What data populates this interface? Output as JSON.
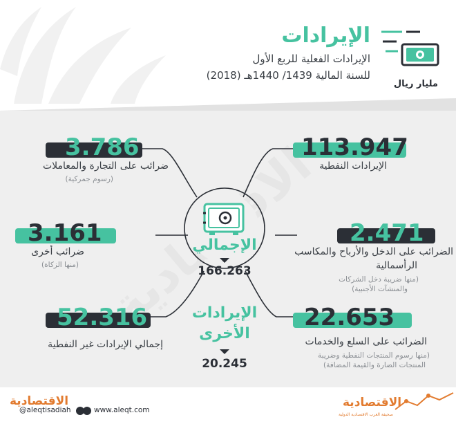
{
  "header": {
    "title": "الإيرادات",
    "subtitle_line1": "الإيرادات الفعلية للربع الأول",
    "subtitle_line2": "للسنة المالية 1439/ 1440هـ (2018)",
    "unit_label": "مليار ريال"
  },
  "items": {
    "oil_revenue": {
      "value": "113.947",
      "label": "الإيرادات النفطية"
    },
    "trade_tax": {
      "value": "3.786",
      "label": "ضرائب على التجارة والمعاملات",
      "note": "(رسوم جمركية)"
    },
    "income_tax": {
      "value": "2.471",
      "label_line1": "الضرائب على الدخل والأرباح والمكاسب",
      "label_line2": "الرأسمالية",
      "note_line1": "(منها ضريبة دخل الشركات",
      "note_line2": "والمنشآت الأجنبية)"
    },
    "other_tax": {
      "value": "3.161",
      "label": "ضرائب أخرى",
      "note": "(منها الزكاة)"
    },
    "goods_tax": {
      "value": "22.653",
      "label": "الضرائب على السلع والخدمات",
      "note_line1": "(منها رسوم المنتجات النفطية وضريبة",
      "note_line2": "المنتجات الضارة والقيمة المضافة)"
    },
    "non_oil_total": {
      "value": "52.316",
      "label": "إجمالي الإيرادات غير النفطية"
    }
  },
  "total": {
    "label": "الإجمالي",
    "value": "166.263"
  },
  "other_revenue": {
    "label_line1": "الإيرادات",
    "label_line2": "الأخرى",
    "value": "20.245"
  },
  "watermark": "الاقتصادية",
  "footer": {
    "logo_left": "الاقتصادية",
    "handle": "@aleqtisadiah",
    "website": "www.aleqt.com",
    "logo_right": "الاقتصادية",
    "tagline": "صحيفة العرب الاقتصادية الدولية"
  },
  "colors": {
    "green": "#46c2a0",
    "dark": "#2b2f36",
    "background": "#efefef",
    "text": "#3a3f45"
  }
}
